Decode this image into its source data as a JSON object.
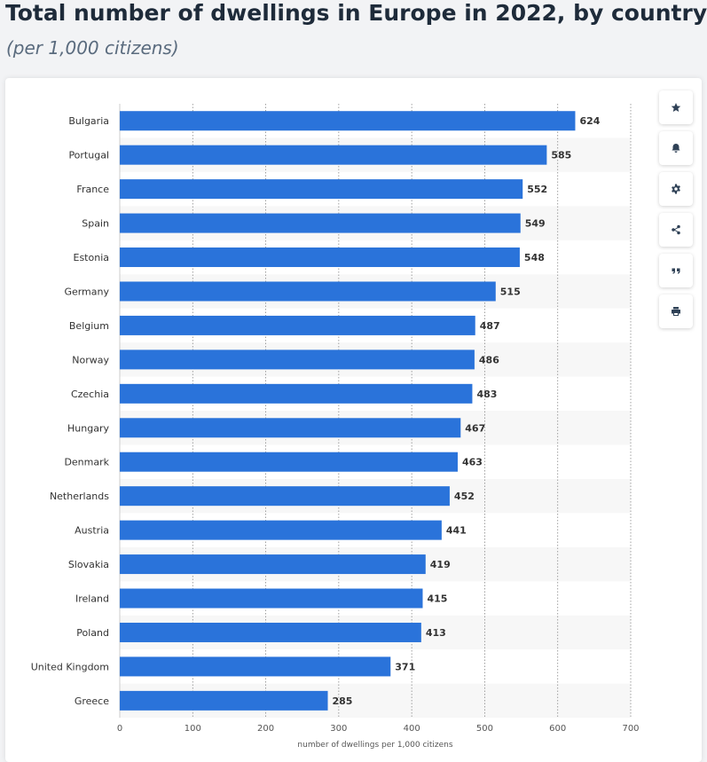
{
  "header": {
    "title": "Total number of dwellings in Europe in 2022, by country",
    "subtitle": "(per 1,000 citizens)"
  },
  "toolbar": {
    "icons": [
      "star-icon",
      "bell-icon",
      "gear-icon",
      "share-icon",
      "quote-icon",
      "print-icon"
    ]
  },
  "colors": {
    "bar": "#2a73da",
    "stripe": "#f7f7f7",
    "grid": "#8a8a8a"
  },
  "chart_data": {
    "type": "bar",
    "orientation": "horizontal",
    "categories": [
      "Bulgaria",
      "Portugal",
      "France",
      "Spain",
      "Estonia",
      "Germany",
      "Belgium",
      "Norway",
      "Czechia",
      "Hungary",
      "Denmark",
      "Netherlands",
      "Austria",
      "Slovakia",
      "Ireland",
      "Poland",
      "United Kingdom",
      "Greece"
    ],
    "values": [
      624,
      585,
      552,
      549,
      548,
      515,
      487,
      486,
      483,
      467,
      463,
      452,
      441,
      419,
      415,
      413,
      371,
      285
    ],
    "xlabel": "number of dwellings per 1,000 citizens",
    "ylabel": "",
    "xlim": [
      0,
      700
    ],
    "xticks": [
      0,
      100,
      200,
      300,
      400,
      500,
      600,
      700
    ],
    "grid": "vertical dashed",
    "data_labels": true
  }
}
